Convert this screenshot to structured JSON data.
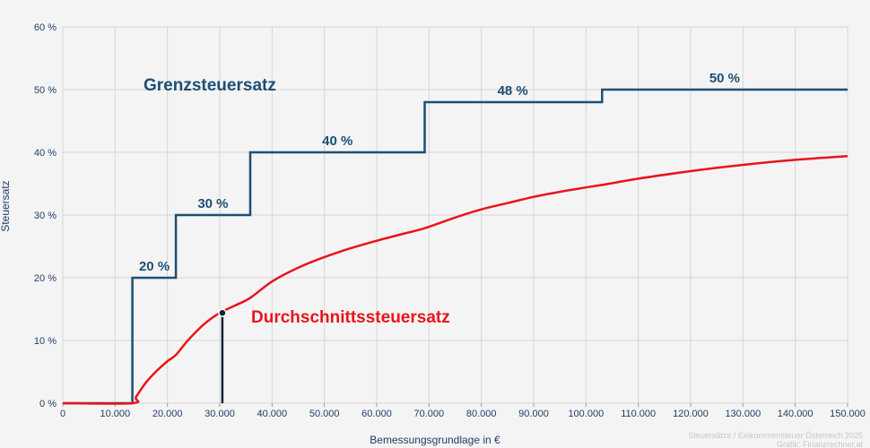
{
  "chart_data": {
    "type": "line",
    "xlabel": "Bemessungsgrundlage in €",
    "ylabel": "Steuersatz",
    "xlim": [
      0,
      150000
    ],
    "ylim": [
      0,
      60
    ],
    "grid": true,
    "x_ticks": [
      {
        "v": 0,
        "label": "0"
      },
      {
        "v": 10000,
        "label": "10.000"
      },
      {
        "v": 20000,
        "label": "20.000"
      },
      {
        "v": 30000,
        "label": "30.000"
      },
      {
        "v": 40000,
        "label": "40.000"
      },
      {
        "v": 50000,
        "label": "50.000"
      },
      {
        "v": 60000,
        "label": "60.000"
      },
      {
        "v": 70000,
        "label": "70.000"
      },
      {
        "v": 80000,
        "label": "80.000"
      },
      {
        "v": 90000,
        "label": "90.000"
      },
      {
        "v": 100000,
        "label": "100.000"
      },
      {
        "v": 110000,
        "label": "110.000"
      },
      {
        "v": 120000,
        "label": "120.000"
      },
      {
        "v": 130000,
        "label": "130.000"
      },
      {
        "v": 140000,
        "label": "140.000"
      },
      {
        "v": 150000,
        "label": "150.000"
      }
    ],
    "y_ticks": [
      {
        "v": 0,
        "label": "0 %"
      },
      {
        "v": 10,
        "label": "10 %"
      },
      {
        "v": 20,
        "label": "20 %"
      },
      {
        "v": 30,
        "label": "30 %"
      },
      {
        "v": 40,
        "label": "40 %"
      },
      {
        "v": 50,
        "label": "50 %"
      },
      {
        "v": 60,
        "label": "60 %"
      }
    ],
    "series": [
      {
        "name": "Grenzsteuersatz",
        "color": "#1d4f73",
        "shape": "step",
        "x": [
          0,
          13308,
          13308,
          21617,
          21617,
          35836,
          35836,
          69166,
          69166,
          103072,
          103072,
          150000
        ],
        "y": [
          0,
          0,
          20,
          20,
          30,
          30,
          40,
          40,
          48,
          48,
          50,
          50
        ],
        "step_labels": [
          {
            "x": 17500,
            "y": 20,
            "label": "20 %"
          },
          {
            "x": 28700,
            "y": 30,
            "label": "30 %"
          },
          {
            "x": 52500,
            "y": 40,
            "label": "40 %"
          },
          {
            "x": 86000,
            "y": 48,
            "label": "48 %"
          },
          {
            "x": 126500,
            "y": 50,
            "label": "50 %"
          }
        ]
      },
      {
        "name": "Durchschnittssteuersatz",
        "color": "#e8141b",
        "shape": "curve",
        "x": [
          0,
          13308,
          14000,
          16000,
          18000,
          20000,
          21617,
          24000,
          27000,
          30000,
          33000,
          35836,
          40000,
          45000,
          50000,
          55000,
          60000,
          65000,
          69166,
          75000,
          80000,
          85000,
          90000,
          95000,
          100000,
          103072,
          110000,
          120000,
          130000,
          140000,
          150000
        ],
        "y": [
          0,
          0,
          1.0,
          3.4,
          5.2,
          6.7,
          7.7,
          10.1,
          12.6,
          14.4,
          15.6,
          16.8,
          19.4,
          21.6,
          23.3,
          24.7,
          25.9,
          27.0,
          27.9,
          29.6,
          30.9,
          31.9,
          32.9,
          33.7,
          34.4,
          34.8,
          35.8,
          37.0,
          38.0,
          38.8,
          39.4
        ]
      }
    ],
    "marker": {
      "x": 30500,
      "y": 14.4,
      "color": "#0f2236"
    }
  },
  "credit": {
    "line1": "Steuersätze / Einkommensteuer Österreich 2025",
    "line2": "Grafik: Finanzrechner.at"
  }
}
